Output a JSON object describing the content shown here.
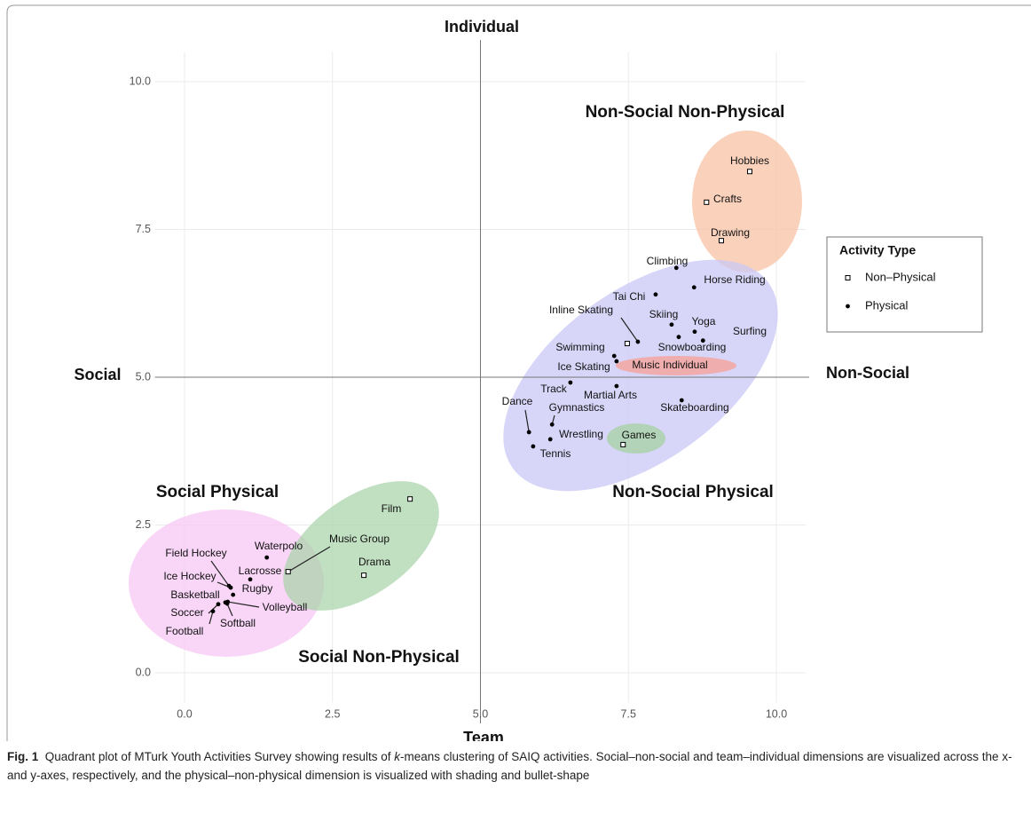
{
  "chart_data": {
    "type": "scatter",
    "top_label": "Individual",
    "bottom_label": "Team",
    "left_label": "Social",
    "right_label": "Non-Social",
    "xlim": [
      -0.5,
      10.5
    ],
    "ylim": [
      -0.5,
      10.5
    ],
    "xticks": [
      {
        "value": 0,
        "label": "0.0"
      },
      2.5,
      {
        "value": 5,
        "label": "5.0"
      },
      7.5,
      {
        "value": 10,
        "label": "10.0"
      }
    ],
    "yticks": [
      {
        "value": 0,
        "label": "0.0"
      },
      2.5,
      {
        "value": 5,
        "label": "5.0"
      },
      7.5,
      {
        "value": 10,
        "label": "10.0"
      }
    ],
    "grid": true,
    "legend_title": "Activity Type",
    "legend_position": "right",
    "clusters": [
      {
        "label": "Non-Social Non-Physical",
        "color": "#f26b3a"
      },
      {
        "label": "Non-Social Physical",
        "color": "#3a33d6"
      },
      {
        "label": "Social Physical",
        "color": "#e23de0"
      },
      {
        "label": "Social Non-Physical",
        "color": "#2f9a46"
      }
    ],
    "series": [
      {
        "name": "Non–Physical",
        "marker": "square",
        "color": "#000000",
        "labels": [
          "Hobbies",
          "Crafts",
          "Drawing",
          "Music Individual",
          "Games",
          "Film",
          "Music Group",
          "Drama"
        ],
        "x": [
          9.55,
          8.82,
          9.07,
          7.48,
          7.41,
          3.81,
          1.75,
          3.03
        ],
        "values": [
          8.48,
          7.96,
          7.31,
          5.57,
          3.86,
          2.94,
          1.71,
          1.65
        ]
      },
      {
        "name": "Physical",
        "marker": "circle",
        "color": "#000000",
        "labels": [
          "Climbing",
          "Horse Riding",
          "Tai Chi",
          "Inline Skating",
          "Skiing",
          "Yoga",
          "Snowboarding",
          "Surfing",
          "Swimming",
          "Ice Skating",
          "Track",
          "Martial Arts",
          "Skateboarding",
          "Gymnastics",
          "Dance",
          "Wrestling",
          "Tennis",
          "Waterpolo",
          "Lacrosse",
          "Field Hockey",
          "Ice Hockey",
          "Rugby",
          "Basketball",
          "Volleyball",
          "Softball",
          "Soccer",
          "Football"
        ],
        "x": [
          8.31,
          8.61,
          7.96,
          7.66,
          8.23,
          8.62,
          8.35,
          8.76,
          7.26,
          7.3,
          6.52,
          7.3,
          8.4,
          6.21,
          5.82,
          6.18,
          5.89,
          1.39,
          1.11,
          0.75,
          0.78,
          0.82,
          0.69,
          0.73,
          0.72,
          0.57,
          0.48
        ],
        "values": [
          6.85,
          6.52,
          6.4,
          5.6,
          5.89,
          5.77,
          5.68,
          5.62,
          5.36,
          5.27,
          4.91,
          4.85,
          4.61,
          4.2,
          4.07,
          3.95,
          3.83,
          1.95,
          1.58,
          1.47,
          1.44,
          1.32,
          1.19,
          1.2,
          1.17,
          1.16,
          1.04
        ]
      }
    ]
  },
  "caption": {
    "label": "Fig. 1",
    "text_before": "Quadrant plot of MTurk Youth Activities Survey showing results of ",
    "italic": "k",
    "text_after": "-means clustering of SAIQ activities. Social–non-social and team–individual dimensions are visualized across the x- and y-axes, respectively, and the physical–non-physical dimension is visualized with shading and bullet-shape"
  }
}
